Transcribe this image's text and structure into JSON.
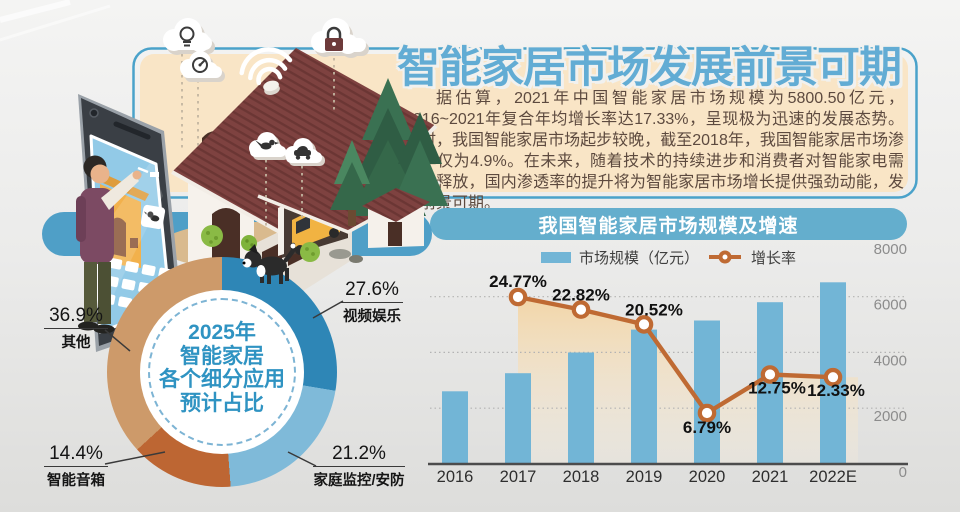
{
  "header": {
    "title": "智能家居市场发展前景可期",
    "intro": "据估算，2021年中国智能家居市场规模为5800.50亿元，2016~2021年复合年均增长率达17.33%，呈现极为迅速的发展态势。同时，我国智能家居市场起步较晚，截至2018年，我国智能家居市场渗透率仅为4.9%。在未来，随着技术的持续进步和消费者对智能家电需求的释放，国内渗透率的提升将为智能家居市场增长提供强劲动能，发展前景可期。"
  },
  "colors": {
    "title_blue": "#62acd4",
    "frame_blue": "#4aa2ca",
    "panel_cream": "#f9e5c6",
    "pill_blue": "#64aecd",
    "bar_blue": "#72b5d6",
    "line_orange": "#bf6a33",
    "pie_dark_blue": "#2e86b6",
    "pie_light_blue": "#7fbad9",
    "pie_rust": "#bd6633",
    "pie_tan": "#cd9a6a"
  },
  "illustration": {
    "icons": [
      "bulb-icon",
      "thermostat-icon",
      "lock-icon",
      "bird-icon",
      "car-icon",
      "wifi-icon"
    ],
    "elements": [
      "smartphone",
      "person",
      "house",
      "garage-car",
      "shed",
      "pine-trees",
      "dog",
      "pond",
      "bushes"
    ]
  },
  "chart_data": [
    {
      "type": "pie",
      "title": "2025年智能家居各个细分应用预计占比",
      "center_text": "2025年\n智能家居\n各个细分应用\n预计占比",
      "start_angle_deg": 0,
      "direction": "clockwise",
      "slices": [
        {
          "label": "视频娱乐",
          "value": 27.6,
          "display": "27.6%",
          "color": "#2e86b6"
        },
        {
          "label": "家庭监控/安防",
          "value": 21.2,
          "display": "21.2%",
          "color": "#7fbad9"
        },
        {
          "label": "智能音箱",
          "value": 14.4,
          "display": "14.4%",
          "color": "#bd6633"
        },
        {
          "label": "其他",
          "value": 36.9,
          "display": "36.9%",
          "color": "#cd9a6a"
        }
      ]
    },
    {
      "type": "bar+line",
      "title": "我国智能家居市场规模及增速",
      "categories": [
        "2016",
        "2017",
        "2018",
        "2019",
        "2020",
        "2021",
        "2022E"
      ],
      "series": [
        {
          "name": "市场规模（亿元）",
          "type": "bar",
          "color": "#72b5d6",
          "values": [
            2608.5,
            3255,
            3998,
            4818,
            5145,
            5800.5,
            6516
          ]
        },
        {
          "name": "增长率",
          "type": "line",
          "color": "#bf6a33",
          "unit": "%",
          "values": [
            null,
            24.77,
            22.82,
            20.52,
            6.79,
            12.75,
            12.33
          ]
        }
      ],
      "y_axis": {
        "ticks": [
          0,
          2000,
          4000,
          6000,
          8000
        ],
        "max": 8000
      },
      "grid": "dotted-horizontal",
      "legend_position": "top-center"
    }
  ]
}
